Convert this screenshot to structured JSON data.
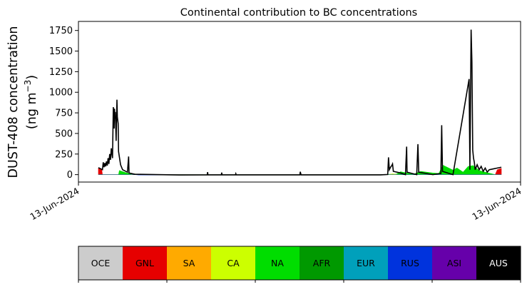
{
  "chart_data": {
    "type": "area",
    "title": "Continental contribution to BC concentrations",
    "ylabel_line1": "DUST-408 concentration",
    "ylabel_line2_prefix": "(ng m",
    "ylabel_sup": "−3",
    "ylabel_line2_suffix": ")",
    "x_start_label": "13-Jun-2024",
    "x_end_label": "13-Jun-2024",
    "ylim": [
      -90,
      1860
    ],
    "yticks": [
      0,
      250,
      500,
      750,
      1000,
      1250,
      1500,
      1750
    ],
    "grid": false,
    "total_series_color": "#000000",
    "total_series": [
      {
        "x": 0.0,
        "y": 85
      },
      {
        "x": 0.01,
        "y": 60
      },
      {
        "x": 0.012,
        "y": 150
      },
      {
        "x": 0.014,
        "y": 90
      },
      {
        "x": 0.016,
        "y": 140
      },
      {
        "x": 0.018,
        "y": 100
      },
      {
        "x": 0.02,
        "y": 160
      },
      {
        "x": 0.022,
        "y": 110
      },
      {
        "x": 0.024,
        "y": 200
      },
      {
        "x": 0.026,
        "y": 130
      },
      {
        "x": 0.028,
        "y": 250
      },
      {
        "x": 0.03,
        "y": 180
      },
      {
        "x": 0.032,
        "y": 320
      },
      {
        "x": 0.035,
        "y": 200
      },
      {
        "x": 0.037,
        "y": 820
      },
      {
        "x": 0.039,
        "y": 560
      },
      {
        "x": 0.04,
        "y": 800
      },
      {
        "x": 0.041,
        "y": 680
      },
      {
        "x": 0.042,
        "y": 760
      },
      {
        "x": 0.044,
        "y": 410
      },
      {
        "x": 0.046,
        "y": 910
      },
      {
        "x": 0.047,
        "y": 700
      },
      {
        "x": 0.049,
        "y": 620
      },
      {
        "x": 0.05,
        "y": 280
      },
      {
        "x": 0.055,
        "y": 120
      },
      {
        "x": 0.06,
        "y": 60
      },
      {
        "x": 0.072,
        "y": 30
      },
      {
        "x": 0.075,
        "y": 220
      },
      {
        "x": 0.076,
        "y": 20
      },
      {
        "x": 0.09,
        "y": 5
      },
      {
        "x": 0.2,
        "y": -4
      },
      {
        "x": 0.27,
        "y": -3
      },
      {
        "x": 0.271,
        "y": 30
      },
      {
        "x": 0.272,
        "y": -3
      },
      {
        "x": 0.305,
        "y": -3
      },
      {
        "x": 0.306,
        "y": 25
      },
      {
        "x": 0.307,
        "y": -3
      },
      {
        "x": 0.34,
        "y": -3
      },
      {
        "x": 0.341,
        "y": 12
      },
      {
        "x": 0.342,
        "y": -3
      },
      {
        "x": 0.5,
        "y": -3
      },
      {
        "x": 0.501,
        "y": 35
      },
      {
        "x": 0.503,
        "y": -3
      },
      {
        "x": 0.7,
        "y": -3
      },
      {
        "x": 0.718,
        "y": 2
      },
      {
        "x": 0.72,
        "y": 210
      },
      {
        "x": 0.722,
        "y": 60
      },
      {
        "x": 0.725,
        "y": 90
      },
      {
        "x": 0.728,
        "y": 110
      },
      {
        "x": 0.73,
        "y": 130
      },
      {
        "x": 0.732,
        "y": 40
      },
      {
        "x": 0.75,
        "y": 20
      },
      {
        "x": 0.762,
        "y": 0
      },
      {
        "x": 0.765,
        "y": 340
      },
      {
        "x": 0.766,
        "y": 30
      },
      {
        "x": 0.79,
        "y": 0
      },
      {
        "x": 0.793,
        "y": 370
      },
      {
        "x": 0.795,
        "y": 30
      },
      {
        "x": 0.83,
        "y": 0
      },
      {
        "x": 0.85,
        "y": 15
      },
      {
        "x": 0.852,
        "y": 600
      },
      {
        "x": 0.854,
        "y": 40
      },
      {
        "x": 0.88,
        "y": 0
      },
      {
        "x": 0.92,
        "y": 1160
      },
      {
        "x": 0.922,
        "y": 60
      },
      {
        "x": 0.925,
        "y": 1760
      },
      {
        "x": 0.927,
        "y": 1370
      },
      {
        "x": 0.929,
        "y": 300
      },
      {
        "x": 0.931,
        "y": 200
      },
      {
        "x": 0.933,
        "y": 150
      },
      {
        "x": 0.935,
        "y": 60
      },
      {
        "x": 0.94,
        "y": 120
      },
      {
        "x": 0.945,
        "y": 60
      },
      {
        "x": 0.95,
        "y": 100
      },
      {
        "x": 0.955,
        "y": 40
      },
      {
        "x": 0.96,
        "y": 80
      },
      {
        "x": 0.965,
        "y": 30
      },
      {
        "x": 0.97,
        "y": 60
      },
      {
        "x": 0.98,
        "y": 70
      },
      {
        "x": 0.99,
        "y": 80
      },
      {
        "x": 1.0,
        "y": 90
      }
    ],
    "contribution_series": [
      {
        "name": "GNL",
        "color": "#e60000",
        "points": [
          {
            "x": 0.0,
            "y": 80
          },
          {
            "x": 0.008,
            "y": 70
          },
          {
            "x": 0.01,
            "y": 0
          },
          {
            "x": 0.985,
            "y": 0
          },
          {
            "x": 0.99,
            "y": 60
          },
          {
            "x": 1.0,
            "y": 75
          }
        ]
      },
      {
        "name": "NA",
        "color": "#00dd00",
        "points": [
          {
            "x": 0.0,
            "y": 0
          },
          {
            "x": 0.05,
            "y": 0
          },
          {
            "x": 0.052,
            "y": 50
          },
          {
            "x": 0.07,
            "y": 20
          },
          {
            "x": 0.09,
            "y": 5
          },
          {
            "x": 0.11,
            "y": 0
          },
          {
            "x": 0.7,
            "y": 0
          },
          {
            "x": 0.74,
            "y": 8
          },
          {
            "x": 0.75,
            "y": 35
          },
          {
            "x": 0.77,
            "y": 15
          },
          {
            "x": 0.785,
            "y": 10
          },
          {
            "x": 0.8,
            "y": 40
          },
          {
            "x": 0.83,
            "y": 20
          },
          {
            "x": 0.845,
            "y": 15
          },
          {
            "x": 0.855,
            "y": 115
          },
          {
            "x": 0.88,
            "y": 55
          },
          {
            "x": 0.89,
            "y": 80
          },
          {
            "x": 0.905,
            "y": 30
          },
          {
            "x": 0.918,
            "y": 100
          },
          {
            "x": 0.93,
            "y": 110
          },
          {
            "x": 0.945,
            "y": 50
          },
          {
            "x": 0.96,
            "y": 30
          },
          {
            "x": 0.985,
            "y": 0
          },
          {
            "x": 1.0,
            "y": 0
          }
        ]
      },
      {
        "name": "CA",
        "color": "#ccff00",
        "points": [
          {
            "x": 0.0,
            "y": 0
          },
          {
            "x": 0.08,
            "y": 0
          },
          {
            "x": 0.09,
            "y": 10
          },
          {
            "x": 0.1,
            "y": 0
          },
          {
            "x": 0.72,
            "y": 0
          },
          {
            "x": 0.73,
            "y": 10
          },
          {
            "x": 0.745,
            "y": 0
          },
          {
            "x": 1.0,
            "y": 0
          }
        ]
      },
      {
        "name": "RUS",
        "color": "#0033dd",
        "points": [
          {
            "x": 0.0,
            "y": 0
          },
          {
            "x": 0.09,
            "y": 0
          },
          {
            "x": 0.1,
            "y": -4
          },
          {
            "x": 0.7,
            "y": -4
          },
          {
            "x": 0.72,
            "y": 0
          },
          {
            "x": 1.0,
            "y": 0
          }
        ]
      }
    ]
  },
  "legend": {
    "items": [
      {
        "label": "OCE",
        "color": "#cccccc",
        "text_color": "#000000"
      },
      {
        "label": "GNL",
        "color": "#e60000",
        "text_color": "#000000"
      },
      {
        "label": "SA",
        "color": "#ffaa00",
        "text_color": "#000000"
      },
      {
        "label": "CA",
        "color": "#ccff00",
        "text_color": "#000000"
      },
      {
        "label": "NA",
        "color": "#00dd00",
        "text_color": "#000000"
      },
      {
        "label": "AFR",
        "color": "#009900",
        "text_color": "#000000"
      },
      {
        "label": "EUR",
        "color": "#00a0bb",
        "text_color": "#000000"
      },
      {
        "label": "RUS",
        "color": "#0033dd",
        "text_color": "#000000"
      },
      {
        "label": "ASI",
        "color": "#6600aa",
        "text_color": "#000000"
      },
      {
        "label": "AUS",
        "color": "#000000",
        "text_color": "#ffffff"
      }
    ]
  }
}
